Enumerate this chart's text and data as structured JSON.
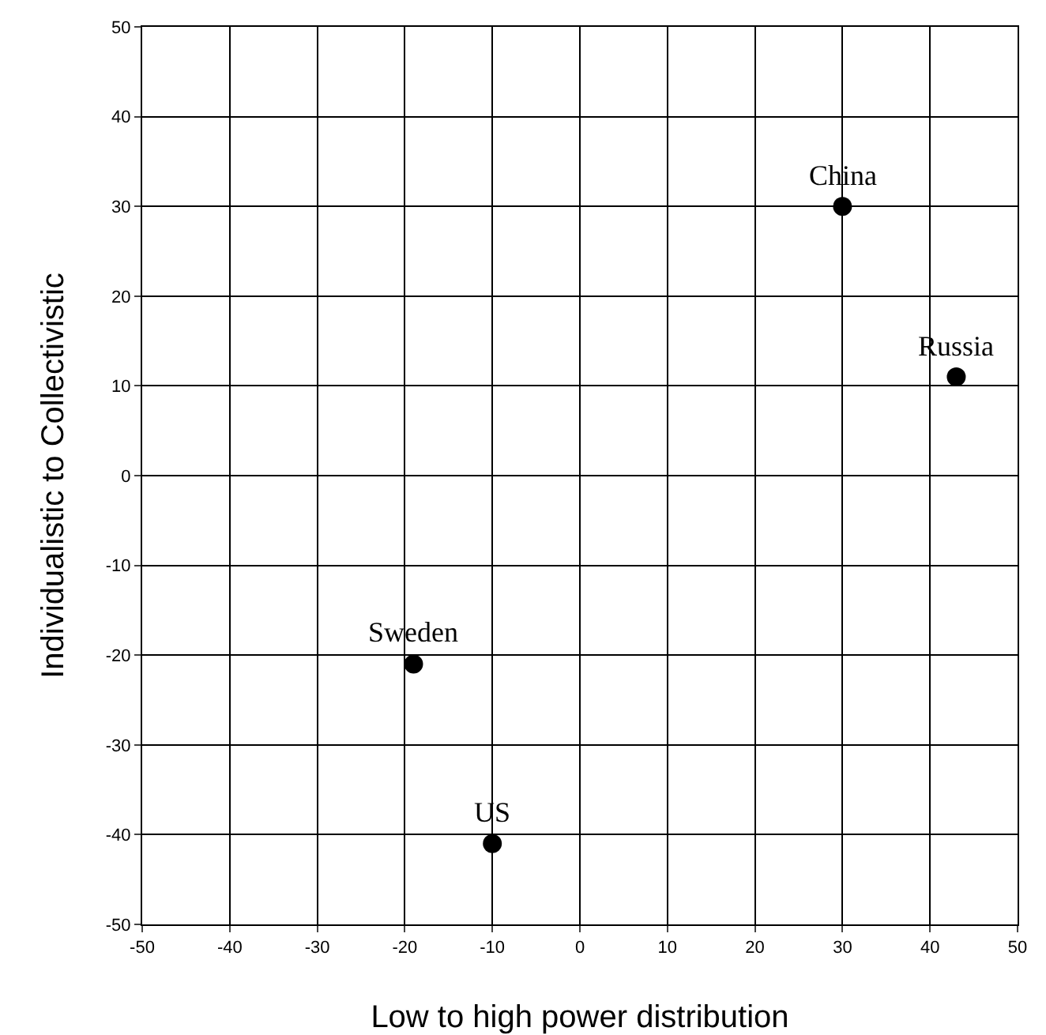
{
  "chart_data": {
    "type": "scatter",
    "xlabel": "Low to high power distribution",
    "ylabel": "Individualistic to Collectivistic",
    "x": [
      30,
      43,
      -19,
      -10
    ],
    "values": [
      30,
      11,
      -21,
      -41
    ],
    "color": "#000000",
    "marker": "circle",
    "xlim": [
      -50,
      50
    ],
    "xticks": [
      -50,
      -40,
      -30,
      -20,
      -10,
      0,
      10,
      20,
      30,
      40,
      50
    ],
    "ylim": [
      -50,
      50
    ],
    "yticks": [
      -50,
      -40,
      -30,
      -20,
      -10,
      0,
      10,
      20,
      30,
      40,
      50
    ],
    "grid": true,
    "legend": false,
    "annotations": [
      {
        "text": "China",
        "x": 30,
        "y": 30
      },
      {
        "text": "Russia",
        "x": 43,
        "y": 11
      },
      {
        "text": "Sweden",
        "x": -19,
        "y": -21
      },
      {
        "text": "US",
        "x": -10,
        "y": -41
      }
    ]
  }
}
